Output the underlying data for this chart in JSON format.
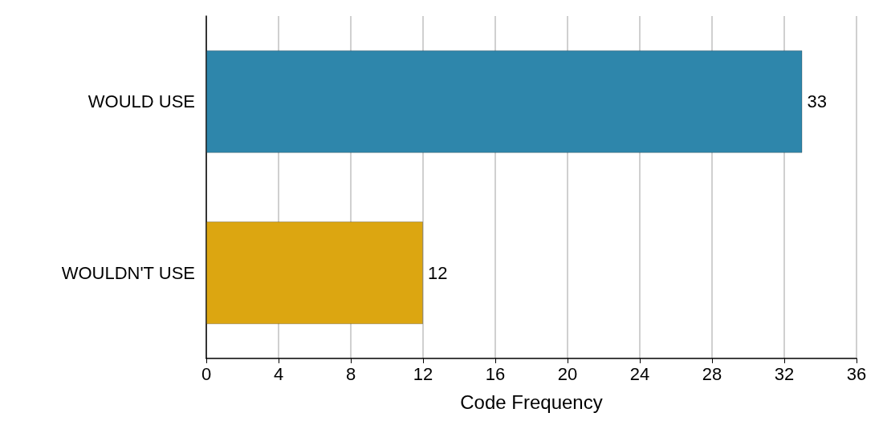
{
  "chart_data": {
    "type": "bar",
    "orientation": "horizontal",
    "categories": [
      "WOULD USE",
      "WOULDN'T USE"
    ],
    "values": [
      33,
      12
    ],
    "colors": [
      "#2e86ab",
      "#dca611"
    ],
    "xlabel": "Code Frequency",
    "xlim": [
      0,
      36
    ],
    "xticks": [
      0,
      4,
      8,
      12,
      16,
      20,
      24,
      28,
      32,
      36
    ],
    "grid": "x",
    "data_labels": true
  }
}
